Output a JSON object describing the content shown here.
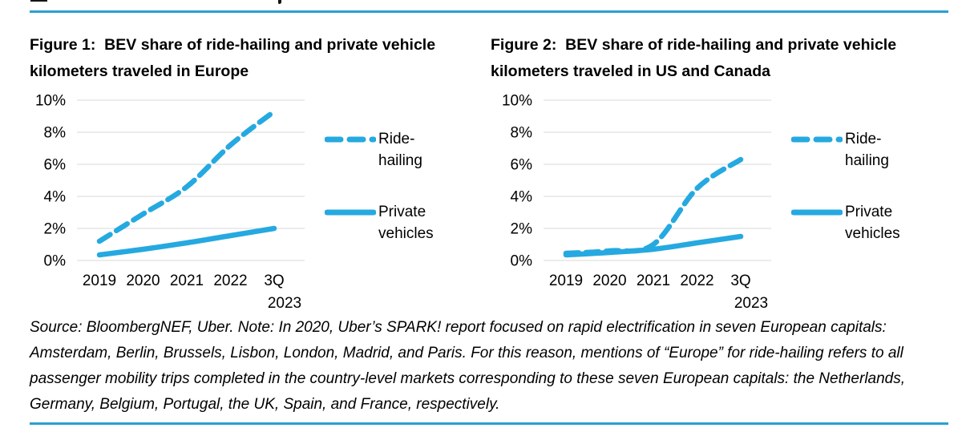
{
  "colors": {
    "accent": "#25A9E0",
    "rule": "#2B9FD3",
    "gridline": "#D9D9D9"
  },
  "figures": [
    {
      "title_lines": [
        "Figure 1:  BEV share of ride-hailing and private vehicle",
        "kilometers traveled in Europe"
      ],
      "legend": {
        "items": [
          {
            "label_lines": [
              "Ride-",
              "hailing"
            ],
            "line_style": "dashed"
          },
          {
            "label_lines": [
              "Private",
              "vehicles"
            ],
            "line_style": "solid"
          }
        ]
      },
      "chart_data": {
        "type": "line",
        "title": "BEV share of ride-hailing and private vehicle kilometers traveled in Europe",
        "x": [
          "2019",
          "2020",
          "2021",
          "2022",
          "3Q\n2023"
        ],
        "yticks": [
          "0%",
          "2%",
          "4%",
          "6%",
          "8%",
          "10%"
        ],
        "ylim": [
          0,
          10
        ],
        "grid": true,
        "legend_position": "right",
        "unit": "percent",
        "series": [
          {
            "name": "Ride-hailing",
            "style": "dashed",
            "values": [
              1.2,
              2.9,
              4.6,
              7.2,
              9.3
            ]
          },
          {
            "name": "Private vehicles",
            "style": "solid",
            "values": [
              0.35,
              0.7,
              1.1,
              1.55,
              2.0
            ]
          }
        ]
      }
    },
    {
      "title_lines": [
        "Figure 2:  BEV share of ride-hailing and private vehicle",
        "kilometers traveled in US and Canada"
      ],
      "legend": {
        "items": [
          {
            "label_lines": [
              "Ride-",
              "hailing"
            ],
            "line_style": "dashed"
          },
          {
            "label_lines": [
              "Private",
              "vehicles"
            ],
            "line_style": "solid"
          }
        ]
      },
      "chart_data": {
        "type": "line",
        "title": "BEV share of ride-hailing and private vehicle kilometers traveled in US and Canada",
        "x": [
          "2019",
          "2020",
          "2021",
          "2022",
          "3Q\n2023"
        ],
        "yticks": [
          "0%",
          "2%",
          "4%",
          "6%",
          "8%",
          "10%"
        ],
        "ylim": [
          0,
          10
        ],
        "grid": true,
        "legend_position": "right",
        "unit": "percent",
        "series": [
          {
            "name": "Ride-hailing",
            "style": "dashed",
            "values": [
              0.45,
              0.6,
              1.0,
              4.5,
              6.3
            ]
          },
          {
            "name": "Private vehicles",
            "style": "solid",
            "values": [
              0.35,
              0.5,
              0.7,
              1.1,
              1.5
            ]
          }
        ]
      }
    }
  ],
  "source_note": {
    "lines": [
      "Source: BloombergNEF, Uber. Note: In 2020, Uber’s SPARK! report focused on rapid electrification in seven European capitals:",
      "Amsterdam, Berlin, Brussels, Lisbon, London, Madrid, and Paris. For this reason, mentions of “Europe” for ride-hailing refers to all",
      "passenger mobility trips completed in the country-level markets corresponding to these seven European capitals: the Netherlands,",
      "Germany, Belgium, Portugal, the UK, Spain, and France, respectively."
    ]
  }
}
